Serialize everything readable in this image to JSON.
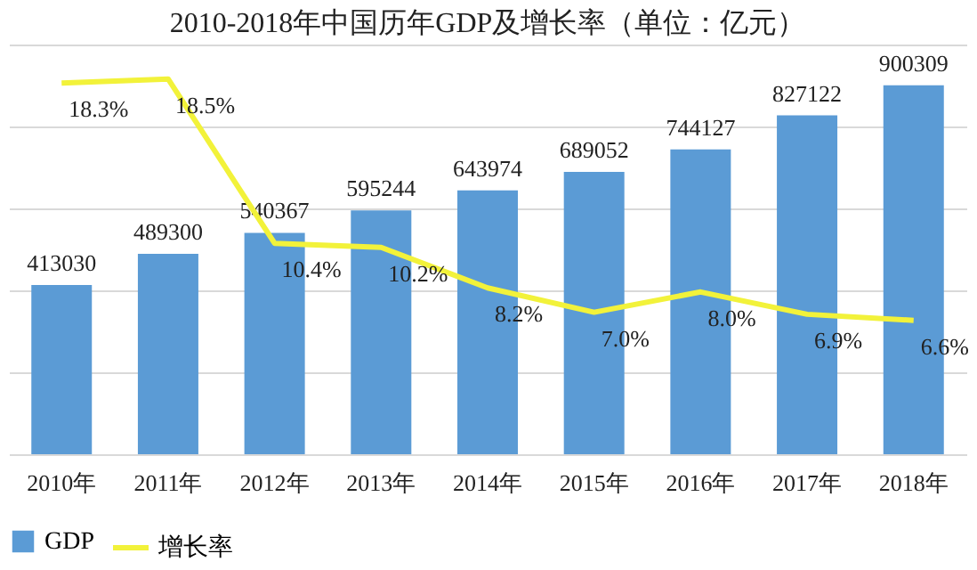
{
  "chart_data": {
    "type": "bar",
    "title": "2010-2018年中国历年GDP及增长率（单位：亿元）",
    "categories": [
      "2010年",
      "2011年",
      "2012年",
      "2013年",
      "2014年",
      "2015年",
      "2016年",
      "2017年",
      "2018年"
    ],
    "series": [
      {
        "name": "GDP",
        "color": "#5b9bd5",
        "values": [
          413030,
          489300,
          540367,
          595244,
          643974,
          689052,
          744127,
          827122,
          900309
        ]
      },
      {
        "name": "增长率",
        "type": "line",
        "axis": "y2",
        "color": "#f2f23a",
        "values": [
          18.3,
          18.5,
          10.4,
          10.2,
          8.2,
          7.0,
          8.0,
          6.9,
          6.6
        ],
        "value_labels": [
          "18.3%",
          "18.5%",
          "10.4%",
          "10.2%",
          "8.2%",
          "7.0%",
          "8.0%",
          "6.9%",
          "6.6%"
        ]
      }
    ],
    "data_labels": true,
    "ylim": [
      0,
      1000000
    ],
    "yticks": [
      {
        "value": 0,
        "label": null
      },
      {
        "value": 200000,
        "label": null
      },
      {
        "value": 400000,
        "label": null
      },
      {
        "value": 600000,
        "label": null
      },
      {
        "value": 800000,
        "label": null
      },
      {
        "value": 1000000,
        "label": null
      }
    ],
    "y2lim": [
      0,
      20.2
    ],
    "grid": "y",
    "legend": "bottom",
    "tick_labels": "x"
  }
}
